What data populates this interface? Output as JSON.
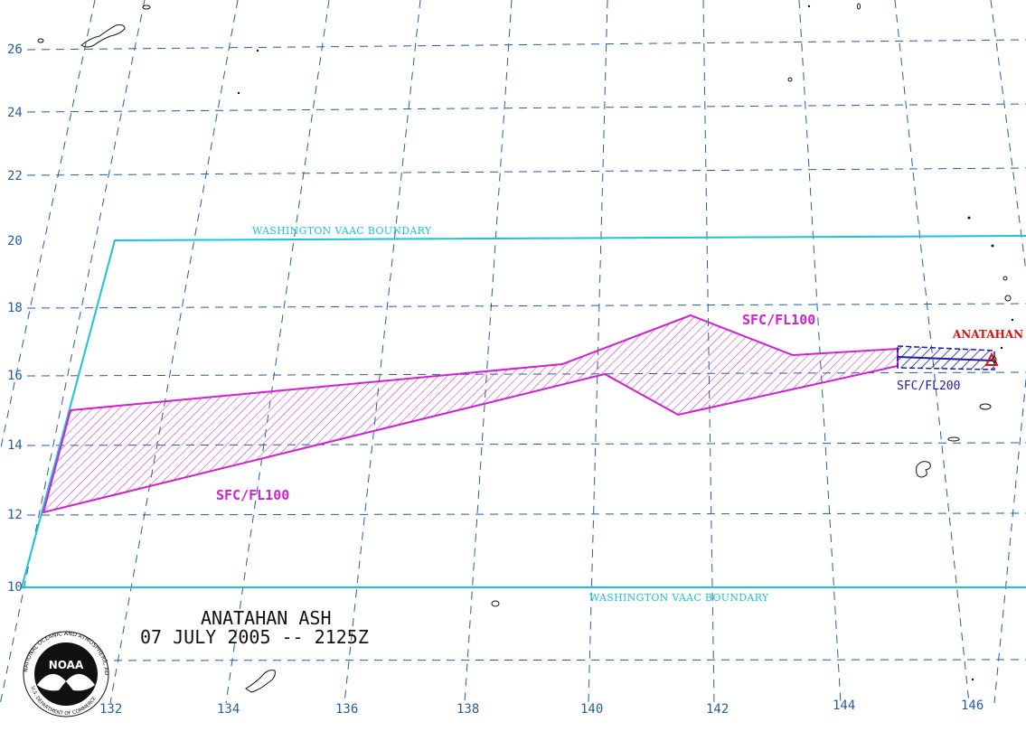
{
  "map": {
    "latitude_labels": [
      "26",
      "24",
      "22",
      "20",
      "18",
      "16",
      "14",
      "12",
      "10"
    ],
    "longitude_labels": [
      "132",
      "134",
      "136",
      "138",
      "140",
      "142",
      "144",
      "146"
    ],
    "boundary_labels": {
      "north": "WASHINGTON VAAC BOUNDARY",
      "south": "WASHINGTON VAAC BOUNDARY"
    },
    "ash_zones": {
      "large_label_east": "SFC/FL100",
      "large_label_west": "SFC/FL100",
      "small_label": "SFC/FL200"
    },
    "volcano_name": "ANATAHAN",
    "title_line1": "ANATAHAN ASH",
    "title_line2": "07 JULY 2005 -- 2125Z",
    "logo": {
      "name": "NOAA",
      "ring_text": "NATIONAL OCEANIC AND ATMOSPHERIC ADMINISTRATION",
      "bottom_text": "U.S. DEPARTMENT OF COMMERCE"
    },
    "colors": {
      "grid": "#1f5fa8",
      "boundary": "#19c4d8",
      "ash_sfc_fl100": "#d21fd2",
      "ash_sfc_fl200": "#1a1ab0",
      "volcano": "#e01010"
    }
  }
}
